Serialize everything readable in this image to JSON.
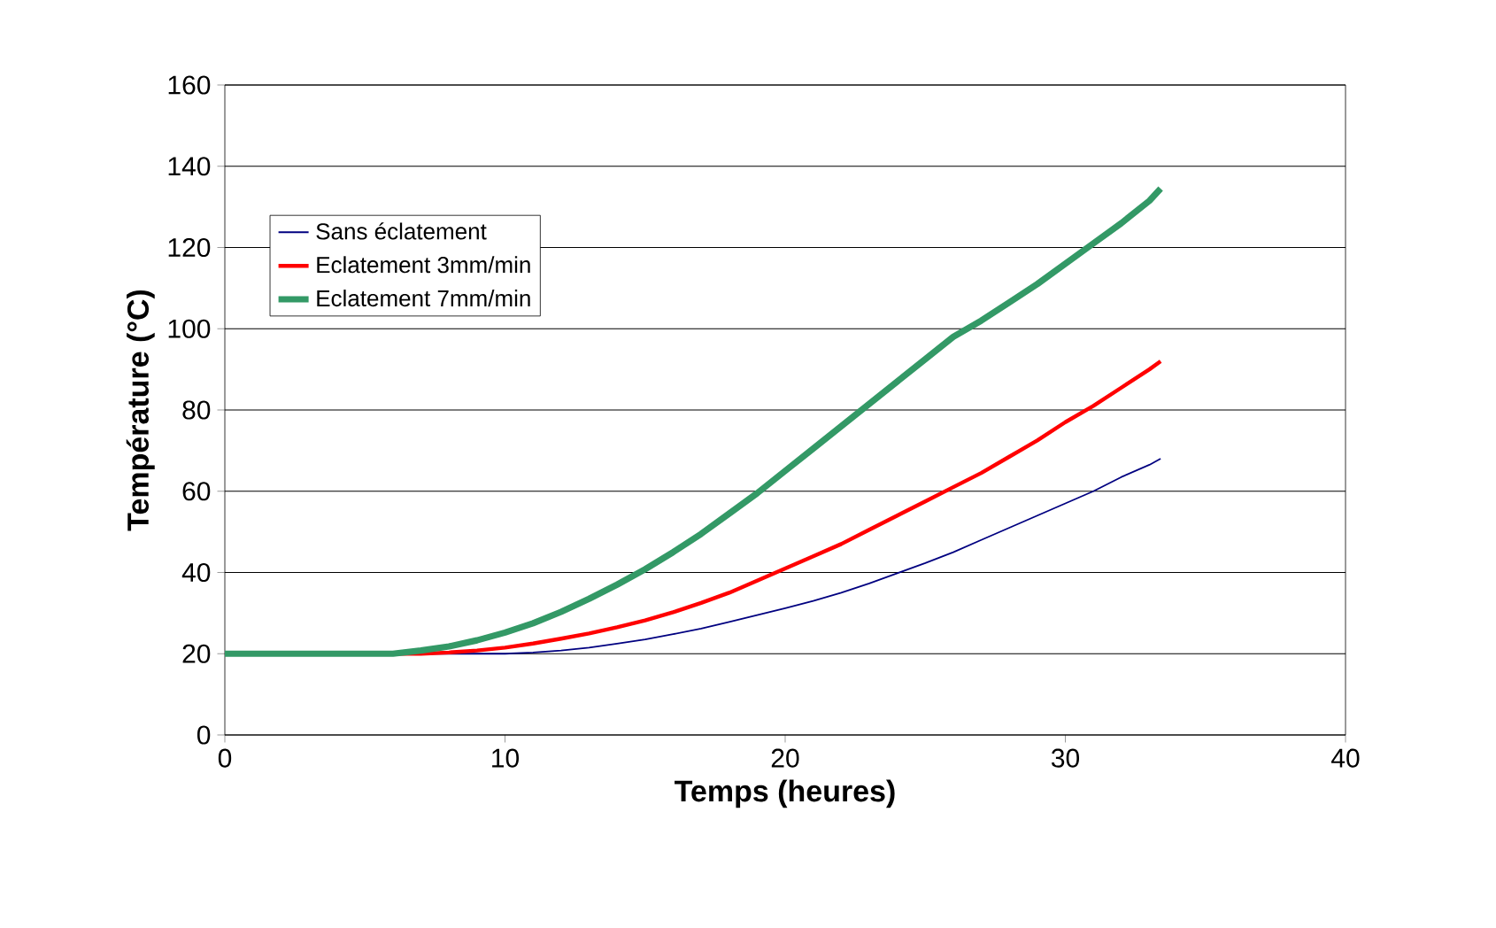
{
  "chart_data": {
    "type": "line",
    "xlabel": "Temps (heures)",
    "ylabel": "Température (°C)",
    "xlim": [
      0,
      40
    ],
    "xticks": [
      0,
      10,
      20,
      30,
      40
    ],
    "ylim": [
      0,
      160
    ],
    "yticks": [
      0,
      20,
      40,
      60,
      80,
      100,
      120,
      140,
      160
    ],
    "grid": "y",
    "legend": "left",
    "marker": "none",
    "line_style": "solid",
    "series": [
      {
        "name": "Sans éclatement",
        "color": "#000080",
        "x": [
          0,
          10,
          11,
          12,
          13,
          14,
          15,
          16,
          17,
          18,
          19,
          20,
          21,
          22,
          23,
          24,
          25,
          26,
          27,
          28,
          29,
          30,
          31,
          32,
          33,
          33.4
        ],
        "values": [
          20,
          20,
          20.3,
          20.8,
          21.5,
          22.5,
          23.5,
          24.8,
          26.2,
          27.8,
          29.5,
          31.2,
          33,
          35,
          37.3,
          39.8,
          42.3,
          45,
          48,
          51,
          54,
          57,
          60,
          63.5,
          66.5,
          68
        ]
      },
      {
        "name": "Eclatement 3mm/min",
        "color": "#ff0000",
        "x": [
          0,
          7,
          8,
          9,
          10,
          11,
          12,
          13,
          14,
          15,
          16,
          17,
          18,
          19,
          20,
          21,
          22,
          23,
          24,
          25,
          26,
          27,
          28,
          29,
          30,
          31,
          32,
          33,
          33.4
        ],
        "values": [
          20,
          20,
          20.3,
          20.8,
          21.5,
          22.5,
          23.7,
          25,
          26.5,
          28.2,
          30.2,
          32.5,
          35,
          38,
          41,
          44,
          47,
          50.5,
          54,
          57.5,
          61,
          64.5,
          68.5,
          72.5,
          77,
          81,
          85.5,
          90,
          92
        ]
      },
      {
        "name": "Eclatement 7mm/min",
        "color": "#339966",
        "x": [
          0,
          6,
          7,
          8,
          9,
          10,
          11,
          12,
          13,
          14,
          15,
          16,
          17,
          18,
          19,
          20,
          21,
          22,
          23,
          24,
          25,
          26,
          27,
          28,
          29,
          30,
          31,
          32,
          33,
          33.4
        ],
        "values": [
          20,
          20,
          20.8,
          21.8,
          23.3,
          25.2,
          27.5,
          30.3,
          33.5,
          37,
          40.8,
          45,
          49.5,
          54.5,
          59.5,
          65,
          70.5,
          76,
          81.5,
          87,
          92.5,
          98,
          102,
          106.5,
          111,
          116,
          121,
          126,
          131.5,
          134.5
        ]
      }
    ]
  }
}
